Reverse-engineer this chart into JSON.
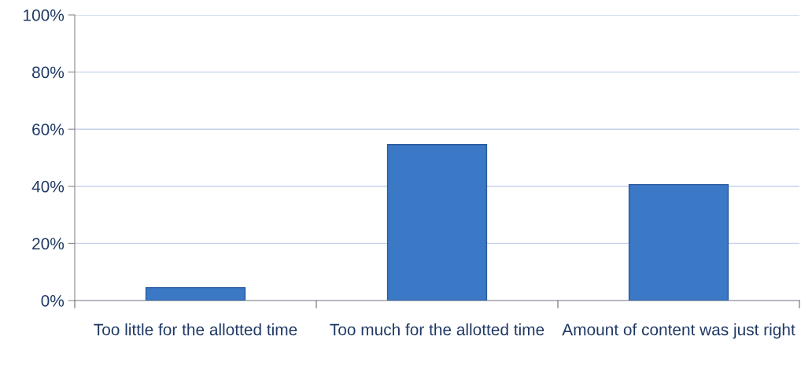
{
  "chart_data": {
    "type": "bar",
    "categories": [
      "Too little for the allotted time",
      "Too much for the allotted time",
      "Amount of content was just right"
    ],
    "values": [
      4.5,
      54.6,
      40.6
    ],
    "color": "#3b78c6",
    "ylim": [
      0,
      100
    ],
    "yticks": [
      {
        "value": 0,
        "label": "0%"
      },
      {
        "value": 20,
        "label": "20%"
      },
      {
        "value": 40,
        "label": "40%"
      },
      {
        "value": 60,
        "label": "60%"
      },
      {
        "value": 80,
        "label": "80%"
      },
      {
        "value": 100,
        "label": "100%"
      }
    ],
    "grid": "y",
    "legend": false
  }
}
